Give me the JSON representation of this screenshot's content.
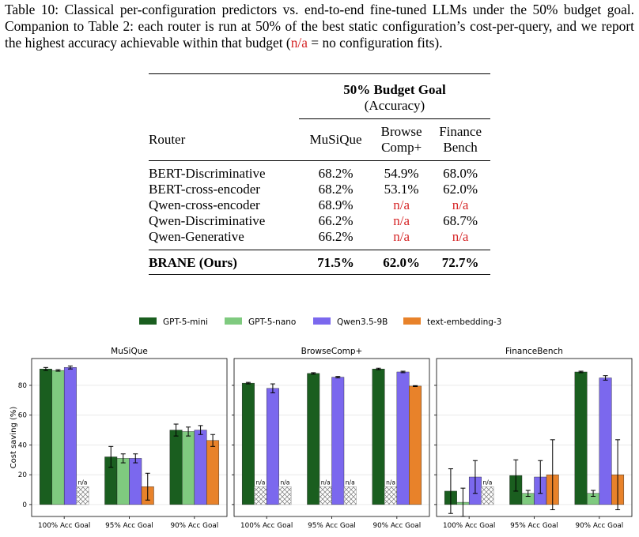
{
  "caption": {
    "lead": "Table 10: Classical per-configuration predictors vs. end-to-end fine-tuned LLMs under the 50% budget goal. Companion to Table 2: each router is run at 50% of the best static configuration’s cost-per-query, and we report the highest accuracy achievable within that budget (",
    "na_text": "n/a",
    "trail": " = no configuration fits)."
  },
  "table": {
    "group_header": "50% Budget Goal",
    "group_sub": "(Accuracy)",
    "router_header": "Router",
    "columns": [
      {
        "l1": "MuSiQue",
        "l2": ""
      },
      {
        "l1": "Browse",
        "l2": "Comp+"
      },
      {
        "l1": "Finance",
        "l2": "Bench"
      }
    ],
    "rows": [
      {
        "name": "BERT-Discriminative",
        "vals": [
          "68.2%",
          "54.9%",
          "68.0%"
        ]
      },
      {
        "name": "BERT-cross-encoder",
        "vals": [
          "68.2%",
          "53.1%",
          "62.0%"
        ]
      },
      {
        "name": "Qwen-cross-encoder",
        "vals": [
          "68.9%",
          "n/a",
          "n/a"
        ]
      },
      {
        "name": "Qwen-Discriminative",
        "vals": [
          "66.2%",
          "n/a",
          "68.7%"
        ]
      },
      {
        "name": "Qwen-Generative",
        "vals": [
          "66.2%",
          "n/a",
          "n/a"
        ]
      }
    ],
    "best": {
      "name": "BRANE (Ours)",
      "vals": [
        "71.5%",
        "62.0%",
        "72.7%"
      ]
    }
  },
  "chart_data": {
    "type": "bar",
    "ylabel": "Cost saving (%)",
    "ylim": [
      -8,
      98
    ],
    "yticks": [
      0,
      20,
      40,
      60,
      80
    ],
    "grid": true,
    "legend_placement": "top-center",
    "categories": [
      "100% Acc Goal",
      "95% Acc Goal",
      "90% Acc Goal"
    ],
    "na_label": "n/a",
    "series_meta": [
      {
        "name": "GPT-5-mini",
        "color": "#1a5e1f"
      },
      {
        "name": "GPT-5-nano",
        "color": "#7fca7f"
      },
      {
        "name": "Qwen3.5-9B",
        "color": "#7b68ee"
      },
      {
        "name": "text-embedding-3",
        "color": "#e8822a"
      }
    ],
    "panels": [
      {
        "title": "MuSiQue",
        "series": [
          {
            "values": [
              91,
              32,
              50
            ],
            "err": [
              1,
              7,
              4
            ]
          },
          {
            "values": [
              90,
              31,
              49
            ],
            "err": [
              0.5,
              3,
              3
            ]
          },
          {
            "values": [
              92,
              31,
              50
            ],
            "err": [
              1,
              3,
              3
            ]
          },
          {
            "values": [
              null,
              12,
              43
            ],
            "err": [
              0,
              9,
              4
            ]
          }
        ]
      },
      {
        "title": "BrowseComp+",
        "series": [
          {
            "values": [
              81.5,
              88,
              91
            ],
            "err": [
              0.5,
              0.5,
              0.5
            ]
          },
          {
            "values": [
              null,
              null,
              null
            ],
            "err": [
              0,
              0,
              0
            ]
          },
          {
            "values": [
              78,
              85.5,
              89
            ],
            "err": [
              3,
              0.5,
              0.5
            ]
          },
          {
            "values": [
              null,
              null,
              79.5
            ],
            "err": [
              0,
              0,
              0.3
            ]
          }
        ]
      },
      {
        "title": "FinanceBench",
        "series": [
          {
            "values": [
              9,
              19.5,
              89
            ],
            "err": [
              15,
              10.5,
              0.5
            ]
          },
          {
            "values": [
              1.5,
              7.5,
              7.5
            ],
            "err": [
              9.5,
              2,
              2
            ]
          },
          {
            "values": [
              18.5,
              18.5,
              85
            ],
            "err": [
              11,
              11,
              1.5
            ]
          },
          {
            "values": [
              null,
              20,
              20
            ],
            "err": [
              0,
              23.5,
              23.5
            ]
          }
        ]
      }
    ]
  }
}
